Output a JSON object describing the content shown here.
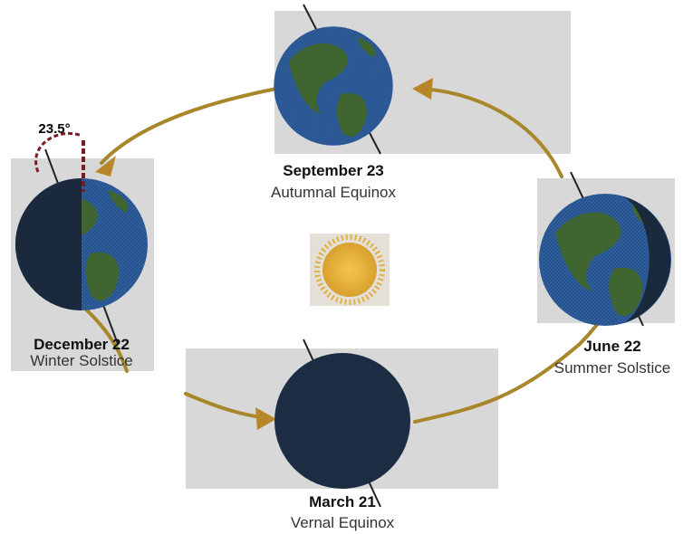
{
  "tilt_label": "23.5°",
  "positions": [
    {
      "date": "September 23",
      "name": "Autumnal Equinox"
    },
    {
      "date": "December 22",
      "name": "Winter Solstice"
    },
    {
      "date": "June 22",
      "name": "Summer Solstice"
    },
    {
      "date": "March 21",
      "name": "Vernal Equinox"
    }
  ]
}
